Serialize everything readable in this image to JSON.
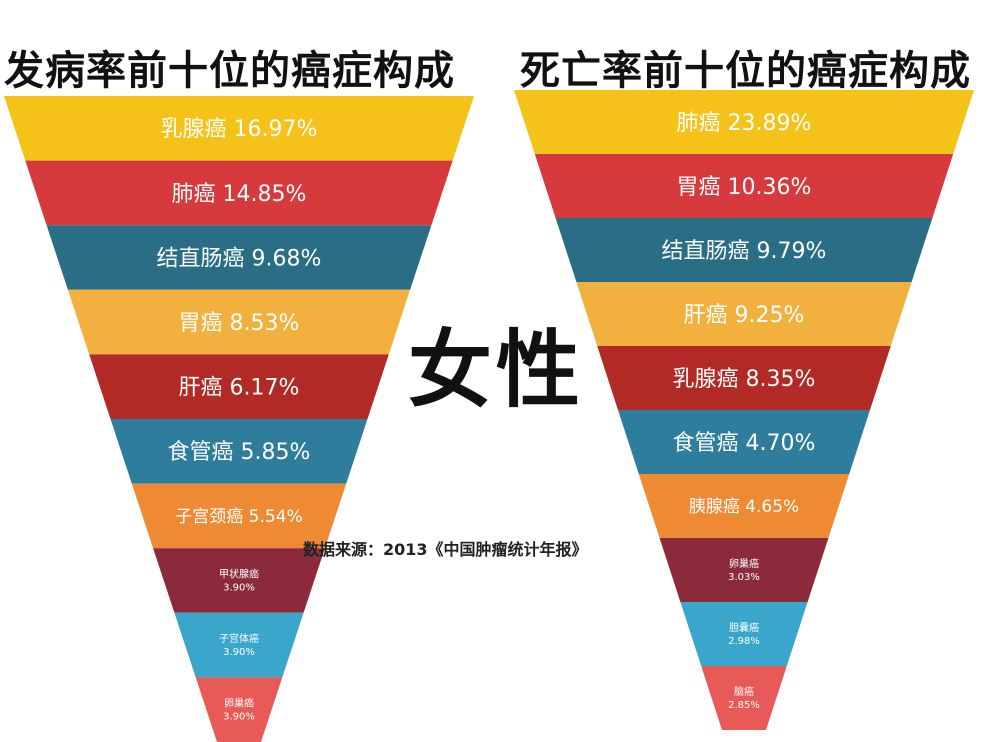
{
  "header": {
    "left_title": "发病率前十位的癌症构成",
    "right_title": "死亡率前十位的癌症构成"
  },
  "center_label": "女性",
  "source_note": "数据来源：2013《中国肿瘤统计年报》",
  "colors": {
    "yellow": "#f5c21a",
    "red": "#d63a3c",
    "teal": "#2a6e85",
    "gold": "#f2b13f",
    "dark_red": "#b12a26",
    "blue": "#2f7d9c",
    "orange": "#ee8a33",
    "maroon": "#8b2a3a",
    "light_blue": "#3aa6cc",
    "coral": "#e85a58"
  },
  "chart_data": [
    {
      "type": "funnel",
      "title": "发病率前十位的癌症构成",
      "categories": [
        "乳腺癌",
        "肺癌",
        "结直肠癌",
        "胃癌",
        "肝癌",
        "食管癌",
        "子宫颈癌",
        "甲状腺癌",
        "子宫体癌",
        "卵巢癌"
      ],
      "values": [
        16.97,
        14.85,
        9.68,
        8.53,
        6.17,
        5.85,
        5.54,
        3.9,
        3.9,
        3.9
      ],
      "labels": [
        "16.97%",
        "14.85%",
        "9.68%",
        "8.53%",
        "6.17%",
        "5.85%",
        "5.54%",
        "3.90%",
        "3.90%",
        "3.90%"
      ],
      "colors": [
        "#f5c21a",
        "#d63a3c",
        "#2a6e85",
        "#f2b13f",
        "#b12a26",
        "#2f7d9c",
        "#ee8a33",
        "#8b2a3a",
        "#3aa6cc",
        "#e85a58"
      ]
    },
    {
      "type": "funnel",
      "title": "死亡率前十位的癌症构成",
      "categories": [
        "肺癌",
        "胃癌",
        "结直肠癌",
        "肝癌",
        "乳腺癌",
        "食管癌",
        "胰腺癌",
        "卵巢癌",
        "胆囊癌",
        "脑癌"
      ],
      "values": [
        23.89,
        10.36,
        9.79,
        9.25,
        8.35,
        4.7,
        4.65,
        3.03,
        2.98,
        2.85
      ],
      "labels": [
        "23.89%",
        "10.36%",
        "9.79%",
        "9.25%",
        "8.35%",
        "4.70%",
        "4.65%",
        "3.03%",
        "2.98%",
        "2.85%"
      ],
      "colors": [
        "#f5c21a",
        "#d63a3c",
        "#2a6e85",
        "#f2b13f",
        "#b12a26",
        "#2f7d9c",
        "#ee8a33",
        "#8b2a3a",
        "#3aa6cc",
        "#e85a58"
      ]
    }
  ]
}
